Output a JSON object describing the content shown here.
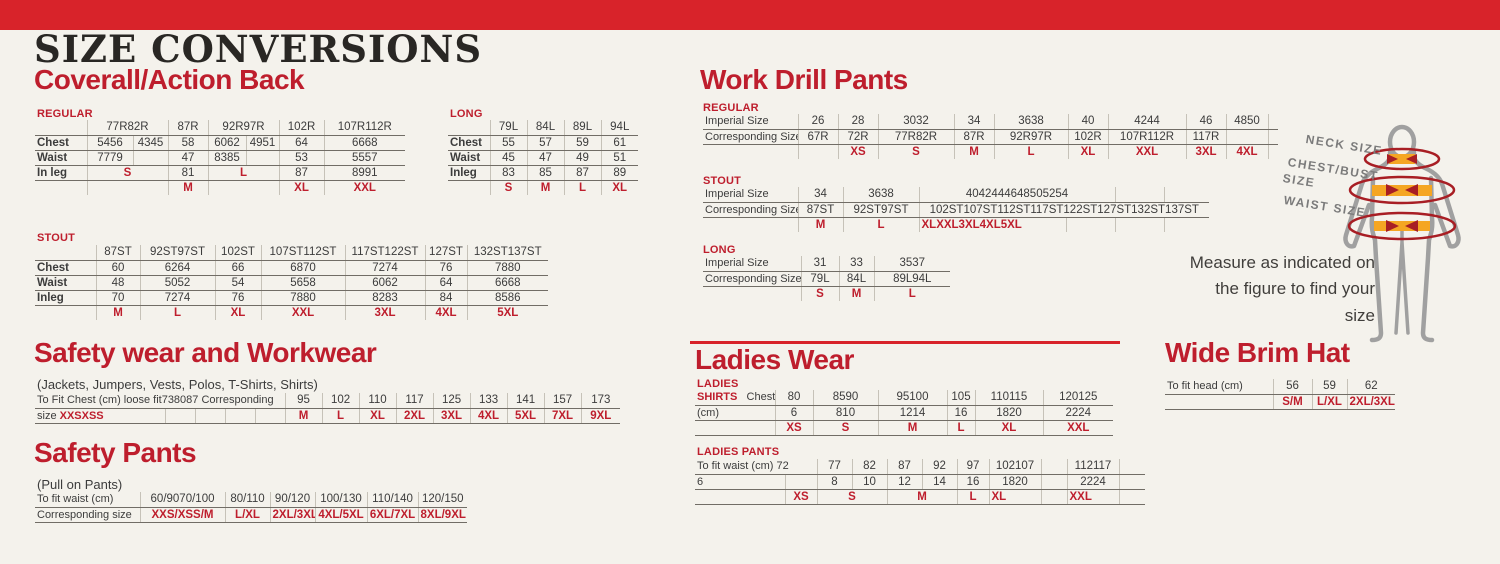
{
  "header": {
    "title": "SIZE CONVERSIONS"
  },
  "colors": {
    "top_bar_red": "#d8232a",
    "accent_red": "#be1e2d",
    "band_orange": "#f5a623",
    "figure_gray": "#a0a0a0",
    "text_dark": "#3c3c3c",
    "background": "#f4f2ec"
  },
  "sections": {
    "coverall": {
      "title": "Coverall/Action Back",
      "regular_label": "REGULAR",
      "long_label": "LONG",
      "stout_label": "STOUT"
    },
    "work_drill": {
      "title": "Work Drill Pants",
      "regular_label": "REGULAR",
      "stout_label": "STOUT",
      "long_label": "LONG"
    },
    "safety_wear": {
      "title": "Safety wear and Workwear",
      "subtitle": "(Jackets, Jumpers, Vests, Polos, T-Shirts, Shirts)"
    },
    "safety_pants": {
      "title": "Safety Pants",
      "subtitle": "(Pull on Pants)"
    },
    "ladies": {
      "title": "Ladies Wear",
      "shirts_label": "LADIES",
      "pants_label": "LADIES PANTS"
    },
    "hat": {
      "title": "Wide Brim Hat"
    }
  },
  "figure": {
    "neck_label": "NECK SIZE",
    "chest_label_line1": "CHEST/BUST",
    "chest_label_line2": "SIZE",
    "waist_label": "WAIST SIZE",
    "caption": "Measure as indicated on the figure to find your size"
  },
  "tables": {
    "coverall_regular": {
      "widths": [
        52,
        46,
        35,
        40,
        38,
        33,
        45,
        81
      ],
      "rows": [
        [
          "",
          {
            "t": "77R82R",
            "s": 2
          },
          "87R",
          {
            "t": "92R97R",
            "s": 2
          },
          "102R",
          "107R112R"
        ],
        [
          {
            "t": "Chest",
            "c": "lb"
          },
          "5456",
          "4345",
          "58",
          "6062",
          "4951",
          "64",
          "6668"
        ],
        [
          {
            "t": "Waist",
            "c": "lb"
          },
          "7779",
          "",
          "47",
          "8385",
          "",
          "53",
          "5557"
        ],
        [
          {
            "t": "In leg",
            "c": "lb"
          },
          {
            "t": "S",
            "s": 2,
            "c": "r"
          },
          "81",
          {
            "t": "L",
            "s": 2,
            "c": "r"
          },
          "87",
          "8991"
        ],
        [
          "",
          {
            "t": "",
            "s": 2
          },
          {
            "t": "M",
            "c": "r"
          },
          {
            "t": "",
            "s": 2
          },
          {
            "t": "XL",
            "c": "r"
          },
          {
            "t": "XXL",
            "c": "r"
          }
        ]
      ]
    },
    "coverall_long": {
      "widths": [
        42,
        37,
        37,
        37,
        37
      ],
      "rows": [
        [
          "",
          "79L",
          "84L",
          "89L",
          "94L"
        ],
        [
          {
            "t": "Chest",
            "c": "lb"
          },
          "55",
          "57",
          "59",
          "61"
        ],
        [
          {
            "t": "Waist",
            "c": "lb"
          },
          "45",
          "47",
          "49",
          "51"
        ],
        [
          {
            "t": "Inleg",
            "c": "lb"
          },
          "83",
          "85",
          "87",
          "89"
        ],
        [
          "",
          {
            "t": "S",
            "c": "r"
          },
          {
            "t": "M",
            "c": "r"
          },
          {
            "t": "L",
            "c": "r"
          },
          {
            "t": "XL",
            "c": "r"
          }
        ]
      ]
    },
    "coverall_stout": {
      "widths": [
        61,
        44,
        75,
        46,
        84,
        80,
        42,
        81
      ],
      "rows": [
        [
          "",
          "87ST",
          "92ST97ST",
          "102ST",
          "107ST112ST",
          "117ST122ST",
          "127ST",
          "132ST137ST"
        ],
        [
          {
            "t": "Chest",
            "c": "lb"
          },
          "60",
          "6264",
          "66",
          "6870",
          "7274",
          "76",
          "7880"
        ],
        [
          {
            "t": "Waist",
            "c": "lb"
          },
          "48",
          "5052",
          "54",
          "5658",
          "6062",
          "64",
          "6668"
        ],
        [
          {
            "t": "Inleg",
            "c": "lb"
          },
          "70",
          "7274",
          "76",
          "7880",
          "8283",
          "84",
          "8586"
        ],
        [
          "",
          {
            "t": "M",
            "c": "r"
          },
          {
            "t": "L",
            "c": "r"
          },
          {
            "t": "XL",
            "c": "r"
          },
          {
            "t": "XXL",
            "c": "r"
          },
          {
            "t": "3XL",
            "c": "r"
          },
          {
            "t": "4XL",
            "c": "r"
          },
          {
            "t": "5XL",
            "c": "r"
          }
        ]
      ]
    },
    "workdrill_regular": {
      "widths": [
        95,
        40,
        40,
        76,
        40,
        74,
        40,
        78,
        40,
        42,
        10
      ],
      "rows": [
        [
          {
            "t": "Imperial Size",
            "c": "ln"
          },
          "26",
          "28",
          "3032",
          "34",
          "3638",
          "40",
          "4244",
          "46",
          "4850",
          ""
        ],
        [
          {
            "t": "Corresponding Size",
            "c": "ln"
          },
          "67R",
          "72R",
          "77R82R",
          "87R",
          "92R97R",
          "102R",
          "107R112R",
          "117R",
          "",
          ""
        ],
        [
          "",
          "",
          {
            "t": "XS",
            "c": "r"
          },
          {
            "t": "S",
            "c": "r"
          },
          {
            "t": "M",
            "c": "r"
          },
          {
            "t": "L",
            "c": "r"
          },
          {
            "t": "XL",
            "c": "r"
          },
          {
            "t": "XXL",
            "c": "r"
          },
          {
            "t": "3XL",
            "c": "r"
          },
          {
            "t": "4XL",
            "c": "r"
          },
          ""
        ]
      ]
    },
    "workdrill_stout": {
      "widths": [
        95,
        45,
        76,
        49,
        49,
        49,
        49,
        49,
        45
      ],
      "rows": [
        [
          {
            "t": "Imperial Size",
            "c": "ln"
          },
          "34",
          "3638",
          {
            "t": "4042444648505254",
            "s": 4
          },
          "",
          ""
        ],
        [
          {
            "t": "Corresponding Size",
            "c": "ln"
          },
          "87ST",
          "92ST97ST",
          {
            "t": "102ST107ST112ST117ST122ST127ST132ST137ST",
            "s": 6
          }
        ],
        [
          "",
          {
            "t": "M",
            "c": "r"
          },
          {
            "t": "L",
            "c": "r"
          },
          {
            "t": "XLXXL3XL4XL5XL",
            "s": 3,
            "c": "r tl"
          },
          "",
          "",
          ""
        ]
      ]
    },
    "workdrill_long": {
      "widths": [
        98,
        38,
        35,
        76
      ],
      "rows": [
        [
          {
            "t": "Imperial Size",
            "c": "ln"
          },
          "31",
          "33",
          "3537"
        ],
        [
          {
            "t": "Corresponding Size",
            "c": "ln"
          },
          "79L",
          "84L",
          "89L94L"
        ],
        [
          "",
          {
            "t": "S",
            "c": "r"
          },
          {
            "t": "M",
            "c": "r"
          },
          {
            "t": "L",
            "c": "r"
          }
        ]
      ]
    },
    "safety_wear": {
      "widths": [
        130,
        30,
        30,
        30,
        30,
        37,
        37,
        37,
        37,
        37,
        37,
        37,
        37,
        39
      ],
      "rows": [
        [
          {
            "t": "To Fit Chest (cm) loose fit738087 Corresponding",
            "s": 5,
            "c": "ln nw"
          },
          "95",
          "102",
          "110",
          "117",
          "125",
          "133",
          "141",
          "157",
          "173"
        ],
        [
          {
            "p": [
              {
                "t": "size ",
                "c": ""
              },
              {
                "t": "XXSXSS",
                "c": "r"
              }
            ],
            "c": "ln"
          },
          "",
          "",
          "",
          "",
          {
            "t": "M",
            "c": "r"
          },
          {
            "t": "L",
            "c": "r"
          },
          {
            "t": "XL",
            "c": "r"
          },
          {
            "t": "2XL",
            "c": "r"
          },
          {
            "t": "3XL",
            "c": "r"
          },
          {
            "t": "4XL",
            "c": "r"
          },
          {
            "t": "5XL",
            "c": "r"
          },
          {
            "t": "7XL",
            "c": "r"
          },
          {
            "t": "9XL",
            "c": "r"
          }
        ]
      ]
    },
    "safety_pants": {
      "widths": [
        105,
        45,
        40,
        45,
        45,
        52,
        51,
        49
      ],
      "rows": [
        [
          {
            "t": "To fit waist (cm)",
            "c": "ln"
          },
          {
            "t": "60/9070/100",
            "s": 2
          },
          "80/110",
          "90/120",
          "100/130",
          "110/140",
          "120/150"
        ],
        [
          {
            "t": "Corresponding size",
            "c": "ln"
          },
          {
            "t": "XXS/XSS/M",
            "s": 2,
            "c": "r"
          },
          {
            "t": "L/XL",
            "c": "r"
          },
          {
            "t": "2XL/3XL",
            "c": "r"
          },
          {
            "t": "4XL/5XL",
            "c": "r"
          },
          {
            "t": "6XL/7XL",
            "c": "r"
          },
          {
            "t": "8XL/9XL",
            "c": "r"
          }
        ]
      ]
    },
    "ladies_shirts": {
      "widths": [
        80,
        38,
        65,
        69,
        28,
        68,
        70
      ],
      "rows": [
        [
          {
            "p": [
              {
                "t": "SHIRTS",
                "c": "r"
              },
              {
                "t": "   Chest",
                "c": ""
              }
            ],
            "c": "ln"
          },
          "80",
          "8590",
          "95100",
          "105",
          "110115",
          "120125"
        ],
        [
          {
            "t": "(cm)",
            "c": "ln"
          },
          "6",
          "810",
          "1214",
          "16",
          "1820",
          "2224"
        ],
        [
          "",
          {
            "t": "XS",
            "c": "r"
          },
          {
            "t": "S",
            "c": "r"
          },
          {
            "t": "M",
            "c": "r"
          },
          {
            "t": "L",
            "c": "r"
          },
          {
            "t": "XL",
            "c": "r"
          },
          {
            "t": "XXL",
            "c": "r"
          }
        ]
      ]
    },
    "ladies_pants": {
      "widths": [
        90,
        32,
        35,
        35,
        35,
        35,
        32,
        52,
        26,
        52,
        26
      ],
      "rows": [
        [
          {
            "t": "To fit waist (cm) 72",
            "s": 2,
            "c": "ln nw"
          },
          "77",
          "82",
          "87",
          "92",
          "97",
          "102107",
          "",
          "112117",
          ""
        ],
        [
          {
            "t": "6",
            "c": "ln"
          },
          "",
          "8",
          "10",
          "12",
          "14",
          "16",
          "1820",
          "",
          "2224",
          ""
        ],
        [
          "",
          {
            "t": "XS",
            "c": "r"
          },
          {
            "t": "S",
            "s": 2,
            "c": "r"
          },
          {
            "t": "M",
            "s": 2,
            "c": "r"
          },
          {
            "t": "L",
            "c": "r"
          },
          {
            "t": "XL",
            "c": "r tl"
          },
          "",
          {
            "t": "XXL",
            "c": "r tl"
          },
          ""
        ]
      ]
    },
    "wide_brim": {
      "widths": [
        108,
        39,
        35,
        48
      ],
      "rows": [
        [
          {
            "t": "To fit head (cm)",
            "c": "ln"
          },
          "56",
          "59",
          "62"
        ],
        [
          "",
          {
            "t": "S/M",
            "c": "r"
          },
          {
            "t": "L/XL",
            "c": "r"
          },
          {
            "t": "2XL/3XL",
            "c": "r"
          }
        ]
      ]
    }
  }
}
